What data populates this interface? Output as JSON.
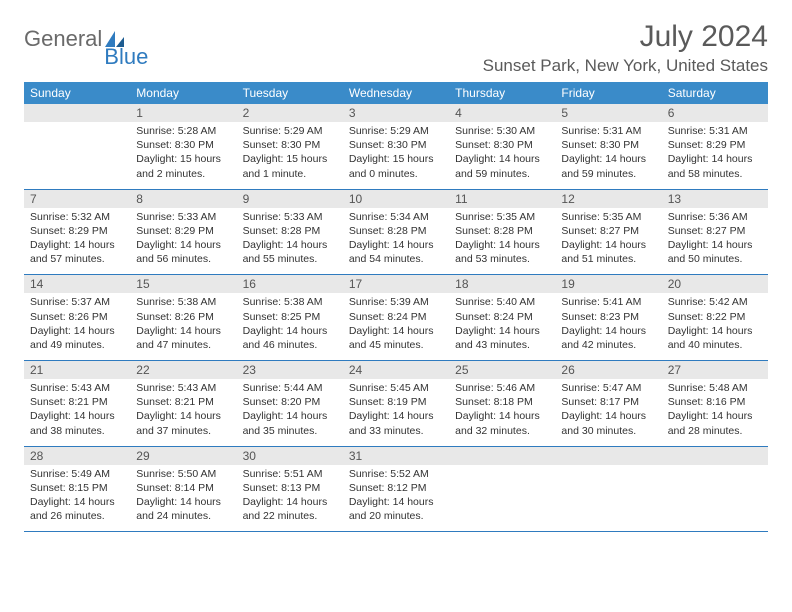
{
  "brand": {
    "word1": "General",
    "word2": "Blue"
  },
  "title": "July 2024",
  "location": "Sunset Park, New York, United States",
  "colors": {
    "header_bg": "#3a8bc9",
    "daynum_bg": "#e8e8e8",
    "rule": "#2f7bbf",
    "logo_gray": "#6a6a6a",
    "logo_blue": "#2f7bbf"
  },
  "day_names": [
    "Sunday",
    "Monday",
    "Tuesday",
    "Wednesday",
    "Thursday",
    "Friday",
    "Saturday"
  ],
  "weeks": [
    {
      "nums": [
        "",
        "1",
        "2",
        "3",
        "4",
        "5",
        "6"
      ],
      "cells": [
        null,
        {
          "sr": "5:28 AM",
          "ss": "8:30 PM",
          "dl": "Daylight: 15 hours and 2 minutes."
        },
        {
          "sr": "5:29 AM",
          "ss": "8:30 PM",
          "dl": "Daylight: 15 hours and 1 minute."
        },
        {
          "sr": "5:29 AM",
          "ss": "8:30 PM",
          "dl": "Daylight: 15 hours and 0 minutes."
        },
        {
          "sr": "5:30 AM",
          "ss": "8:30 PM",
          "dl": "Daylight: 14 hours and 59 minutes."
        },
        {
          "sr": "5:31 AM",
          "ss": "8:30 PM",
          "dl": "Daylight: 14 hours and 59 minutes."
        },
        {
          "sr": "5:31 AM",
          "ss": "8:29 PM",
          "dl": "Daylight: 14 hours and 58 minutes."
        }
      ]
    },
    {
      "nums": [
        "7",
        "8",
        "9",
        "10",
        "11",
        "12",
        "13"
      ],
      "cells": [
        {
          "sr": "5:32 AM",
          "ss": "8:29 PM",
          "dl": "Daylight: 14 hours and 57 minutes."
        },
        {
          "sr": "5:33 AM",
          "ss": "8:29 PM",
          "dl": "Daylight: 14 hours and 56 minutes."
        },
        {
          "sr": "5:33 AM",
          "ss": "8:28 PM",
          "dl": "Daylight: 14 hours and 55 minutes."
        },
        {
          "sr": "5:34 AM",
          "ss": "8:28 PM",
          "dl": "Daylight: 14 hours and 54 minutes."
        },
        {
          "sr": "5:35 AM",
          "ss": "8:28 PM",
          "dl": "Daylight: 14 hours and 53 minutes."
        },
        {
          "sr": "5:35 AM",
          "ss": "8:27 PM",
          "dl": "Daylight: 14 hours and 51 minutes."
        },
        {
          "sr": "5:36 AM",
          "ss": "8:27 PM",
          "dl": "Daylight: 14 hours and 50 minutes."
        }
      ]
    },
    {
      "nums": [
        "14",
        "15",
        "16",
        "17",
        "18",
        "19",
        "20"
      ],
      "cells": [
        {
          "sr": "5:37 AM",
          "ss": "8:26 PM",
          "dl": "Daylight: 14 hours and 49 minutes."
        },
        {
          "sr": "5:38 AM",
          "ss": "8:26 PM",
          "dl": "Daylight: 14 hours and 47 minutes."
        },
        {
          "sr": "5:38 AM",
          "ss": "8:25 PM",
          "dl": "Daylight: 14 hours and 46 minutes."
        },
        {
          "sr": "5:39 AM",
          "ss": "8:24 PM",
          "dl": "Daylight: 14 hours and 45 minutes."
        },
        {
          "sr": "5:40 AM",
          "ss": "8:24 PM",
          "dl": "Daylight: 14 hours and 43 minutes."
        },
        {
          "sr": "5:41 AM",
          "ss": "8:23 PM",
          "dl": "Daylight: 14 hours and 42 minutes."
        },
        {
          "sr": "5:42 AM",
          "ss": "8:22 PM",
          "dl": "Daylight: 14 hours and 40 minutes."
        }
      ]
    },
    {
      "nums": [
        "21",
        "22",
        "23",
        "24",
        "25",
        "26",
        "27"
      ],
      "cells": [
        {
          "sr": "5:43 AM",
          "ss": "8:21 PM",
          "dl": "Daylight: 14 hours and 38 minutes."
        },
        {
          "sr": "5:43 AM",
          "ss": "8:21 PM",
          "dl": "Daylight: 14 hours and 37 minutes."
        },
        {
          "sr": "5:44 AM",
          "ss": "8:20 PM",
          "dl": "Daylight: 14 hours and 35 minutes."
        },
        {
          "sr": "5:45 AM",
          "ss": "8:19 PM",
          "dl": "Daylight: 14 hours and 33 minutes."
        },
        {
          "sr": "5:46 AM",
          "ss": "8:18 PM",
          "dl": "Daylight: 14 hours and 32 minutes."
        },
        {
          "sr": "5:47 AM",
          "ss": "8:17 PM",
          "dl": "Daylight: 14 hours and 30 minutes."
        },
        {
          "sr": "5:48 AM",
          "ss": "8:16 PM",
          "dl": "Daylight: 14 hours and 28 minutes."
        }
      ]
    },
    {
      "nums": [
        "28",
        "29",
        "30",
        "31",
        "",
        "",
        ""
      ],
      "cells": [
        {
          "sr": "5:49 AM",
          "ss": "8:15 PM",
          "dl": "Daylight: 14 hours and 26 minutes."
        },
        {
          "sr": "5:50 AM",
          "ss": "8:14 PM",
          "dl": "Daylight: 14 hours and 24 minutes."
        },
        {
          "sr": "5:51 AM",
          "ss": "8:13 PM",
          "dl": "Daylight: 14 hours and 22 minutes."
        },
        {
          "sr": "5:52 AM",
          "ss": "8:12 PM",
          "dl": "Daylight: 14 hours and 20 minutes."
        },
        null,
        null,
        null
      ]
    }
  ],
  "labels": {
    "sunrise": "Sunrise:",
    "sunset": "Sunset:"
  }
}
